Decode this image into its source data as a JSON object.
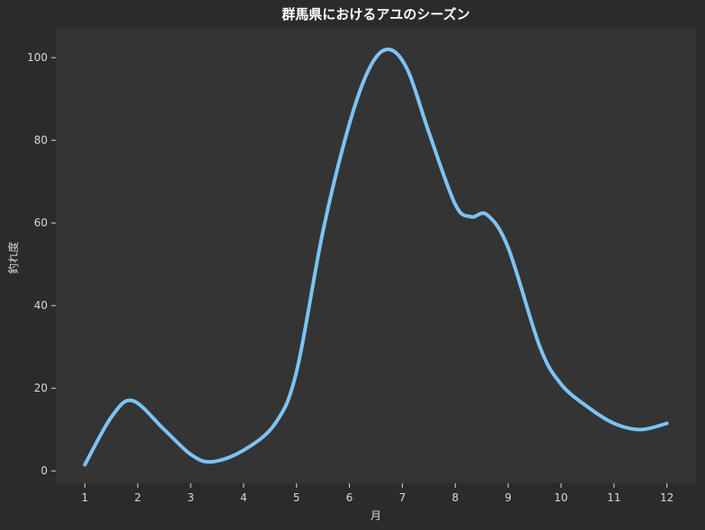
{
  "chart_data": {
    "type": "line",
    "title": "群馬県におけるアユのシーズン",
    "xlabel": "月",
    "ylabel": "釣れ度",
    "x": [
      1,
      2,
      3,
      4,
      5,
      6,
      7,
      8,
      9,
      10,
      11,
      12
    ],
    "x_tick_labels": [
      "1",
      "2",
      "3",
      "4",
      "5",
      "6",
      "7",
      "8",
      "9",
      "10",
      "11",
      "12"
    ],
    "y_ticks": [
      0,
      20,
      40,
      60,
      80,
      100
    ],
    "y_tick_labels": [
      "0",
      "20",
      "40",
      "60",
      "80",
      "100"
    ],
    "xlim": [
      0.45,
      12.55
    ],
    "ylim": [
      -3,
      107
    ],
    "series": [
      {
        "color": "#7dc3f5",
        "smooth": true,
        "x": [
          1.0,
          1.5,
          1.9,
          2.5,
          3.0,
          3.4,
          4.0,
          4.6,
          5.0,
          5.5,
          6.0,
          6.4,
          6.75,
          7.1,
          7.5,
          8.0,
          8.3,
          8.6,
          9.0,
          9.6,
          10.0,
          10.5,
          11.0,
          11.5,
          12.0
        ],
        "values": [
          1.5,
          13.0,
          17.0,
          10.0,
          4.0,
          2.2,
          5.0,
          11.5,
          24.0,
          58.0,
          84.0,
          98.0,
          102.0,
          97.0,
          82.0,
          64.5,
          61.5,
          62.0,
          54.0,
          30.0,
          21.0,
          15.5,
          11.5,
          10.0,
          11.5
        ]
      }
    ],
    "colors": {
      "figure_background": "#2b2b2b",
      "plot_background": "#343434",
      "text": "#d8d8d8",
      "title": "#ffffff",
      "line": "#7dc3f5"
    },
    "grid": false,
    "legend": "none"
  }
}
